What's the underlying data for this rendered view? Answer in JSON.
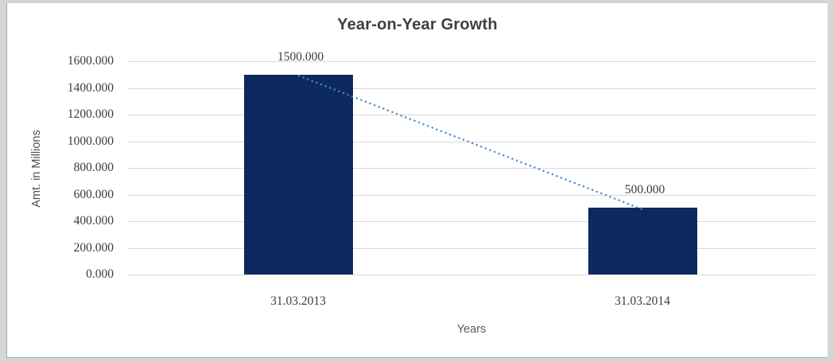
{
  "frame": {
    "background_color": "#d5d5d5",
    "border_color": "#a9a9a9",
    "canvas_color": "#ffffff"
  },
  "chart_data": {
    "type": "bar",
    "title": "Year-on-Year Growth",
    "xlabel": "Years",
    "ylabel": "Amt. in Millions",
    "categories": [
      "31.03.2013",
      "31.03.2014"
    ],
    "values": [
      1500,
      500
    ],
    "data_labels": [
      "1500.000",
      "500.000"
    ],
    "ylim": [
      0,
      1600
    ],
    "ytick_step": 200,
    "ytick_labels": [
      "0.000",
      "200.000",
      "400.000",
      "600.000",
      "800.000",
      "1000.000",
      "1200.000",
      "1400.000",
      "1600.000"
    ],
    "grid": true,
    "legend_position": "none",
    "trendline": {
      "style": "dotted",
      "from_category": "31.03.2013",
      "from_value": 1500,
      "to_category": "31.03.2014",
      "to_value": 500,
      "color": "#4a86cf"
    },
    "colors": {
      "bar": "#0d2a5e",
      "gridline": "#d9d9d9",
      "title_text": "#3f3f3f",
      "tick_text": "#3b3b3b",
      "axis_title_text": "#595959"
    }
  }
}
